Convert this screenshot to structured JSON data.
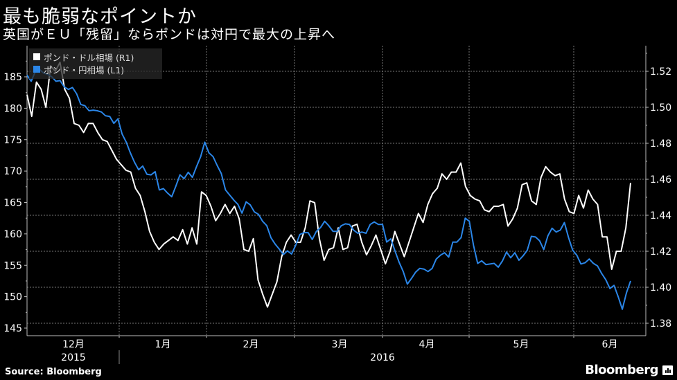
{
  "header": {
    "title": "最も脆弱なポイントか",
    "subtitle": "英国がＥＵ「残留」ならポンドは対円で最大の上昇へ"
  },
  "legend": {
    "items": [
      {
        "label": "ポンド・ドル相場 (R1)",
        "color": "#ffffff"
      },
      {
        "label": "ポンド・円相場 (L1)",
        "color": "#2b86e8"
      }
    ]
  },
  "footer": {
    "source": "Source: Bloomberg",
    "brand": "Bloomberg"
  },
  "colors": {
    "background": "#000000",
    "gbpusd": "#ffffff",
    "gbpjpy": "#2b86e8",
    "grid": "#777777",
    "axis": "#bbbbbb"
  },
  "chart_data": {
    "type": "line",
    "title": "最も脆弱なポイントか",
    "subtitle": "英国がＥＵ「残留」ならポンドは対円で最大の上昇へ",
    "xlabel": "",
    "x_ticks": [
      "12月",
      "1月",
      "2月",
      "3月",
      "4月",
      "5月",
      "6月"
    ],
    "x_year_labels": [
      {
        "label": "2015",
        "under": "12月"
      },
      {
        "label": "2016",
        "under": "3月"
      }
    ],
    "left_axis": {
      "label": "ポンド・円相場 (L1)",
      "ticks": [
        145,
        150,
        155,
        160,
        165,
        170,
        175,
        180,
        185
      ],
      "ylim": [
        144.3,
        188
      ]
    },
    "right_axis": {
      "label": "ポンド・ドル相場 (R1)",
      "ticks": [
        1.38,
        1.4,
        1.42,
        1.44,
        1.46,
        1.48,
        1.5,
        1.52
      ],
      "ylim": [
        1.376,
        1.532
      ]
    },
    "grid": true,
    "legend_position": "top-left",
    "x_range": [
      "2015-11-20",
      "2016-06-21"
    ],
    "series": [
      {
        "name": "ポンド・ドル相場 (R1)",
        "axis": "right",
        "color": "#ffffff",
        "values": [
          1.507,
          1.495,
          1.514,
          1.51,
          1.5,
          1.523,
          1.52,
          1.525,
          1.51,
          1.505,
          1.491,
          1.49,
          1.486,
          1.491,
          1.491,
          1.486,
          1.482,
          1.481,
          1.476,
          1.471,
          1.468,
          1.465,
          1.464,
          1.455,
          1.451,
          1.442,
          1.431,
          1.425,
          1.421,
          1.424,
          1.426,
          1.428,
          1.426,
          1.432,
          1.424,
          1.433,
          1.424,
          1.453,
          1.451,
          1.445,
          1.437,
          1.441,
          1.446,
          1.441,
          1.445,
          1.438,
          1.421,
          1.42,
          1.427,
          1.404,
          1.396,
          1.389,
          1.396,
          1.403,
          1.417,
          1.425,
          1.429,
          1.425,
          1.425,
          1.433,
          1.448,
          1.447,
          1.427,
          1.415,
          1.421,
          1.422,
          1.433,
          1.421,
          1.422,
          1.434,
          1.435,
          1.425,
          1.418,
          1.423,
          1.429,
          1.421,
          1.413,
          1.42,
          1.431,
          1.424,
          1.417,
          1.425,
          1.433,
          1.441,
          1.436,
          1.446,
          1.452,
          1.455,
          1.463,
          1.46,
          1.464,
          1.464,
          1.469,
          1.456,
          1.451,
          1.449,
          1.448,
          1.443,
          1.442,
          1.445,
          1.445,
          1.446,
          1.434,
          1.438,
          1.444,
          1.457,
          1.458,
          1.448,
          1.446,
          1.461,
          1.467,
          1.464,
          1.462,
          1.463,
          1.449,
          1.442,
          1.441,
          1.451,
          1.444,
          1.454,
          1.449,
          1.446,
          1.428,
          1.428,
          1.41,
          1.42,
          1.42,
          1.433,
          1.458
        ]
      },
      {
        "name": "ポンド・円相場 (L1)",
        "axis": "left",
        "color": "#2b86e8",
        "values": [
          185.3,
          184.3,
          185.8,
          186.2,
          185.6,
          185.4,
          185.0,
          184.3,
          184.4,
          183.4,
          183.0,
          183.3,
          182.3,
          180.6,
          180.4,
          179.6,
          179.7,
          179.6,
          179.4,
          178.8,
          178.7,
          177.6,
          178.3,
          175.9,
          174.6,
          172.9,
          171.4,
          170.2,
          170.8,
          169.5,
          169.4,
          169.9,
          167.0,
          167.2,
          166.5,
          165.9,
          167.6,
          169.4,
          168.8,
          169.8,
          169.0,
          170.7,
          172.3,
          174.6,
          172.9,
          172.3,
          170.9,
          169.6,
          167.0,
          166.2,
          165.4,
          164.7,
          163.3,
          165.1,
          164.6,
          163.5,
          163.1,
          162.0,
          161.3,
          159.4,
          158.4,
          157.6,
          156.7,
          157.3,
          156.8,
          158.2,
          159.9,
          160.2,
          160.2,
          159.1,
          160.4,
          161.0,
          162.0,
          161.3,
          160.4,
          160.4,
          161.3,
          161.6,
          161.5,
          160.6,
          160.1,
          160.3,
          160.1,
          161.5,
          161.9,
          161.5,
          161.5,
          158.7,
          159.2,
          157.3,
          155.5,
          154.0,
          152.0,
          152.9,
          153.9,
          154.5,
          154.4,
          154.0,
          154.5,
          156.0,
          156.6,
          157.0,
          156.3,
          158.7,
          158.7,
          159.4,
          162.5,
          162.0,
          158.2,
          155.3,
          155.7,
          155.1,
          155.2,
          155.3,
          154.7,
          155.7,
          157.1,
          156.2,
          157.0,
          155.8,
          156.5,
          157.4,
          159.6,
          159.5,
          158.9,
          157.5,
          159.7,
          160.9,
          160.3,
          160.6,
          161.8,
          159.4,
          157.4,
          156.6,
          155.2,
          155.4,
          156.0,
          155.3,
          154.9,
          153.7,
          152.7,
          151.3,
          151.8,
          150.0,
          148.0,
          150.6,
          152.5
        ]
      }
    ]
  }
}
